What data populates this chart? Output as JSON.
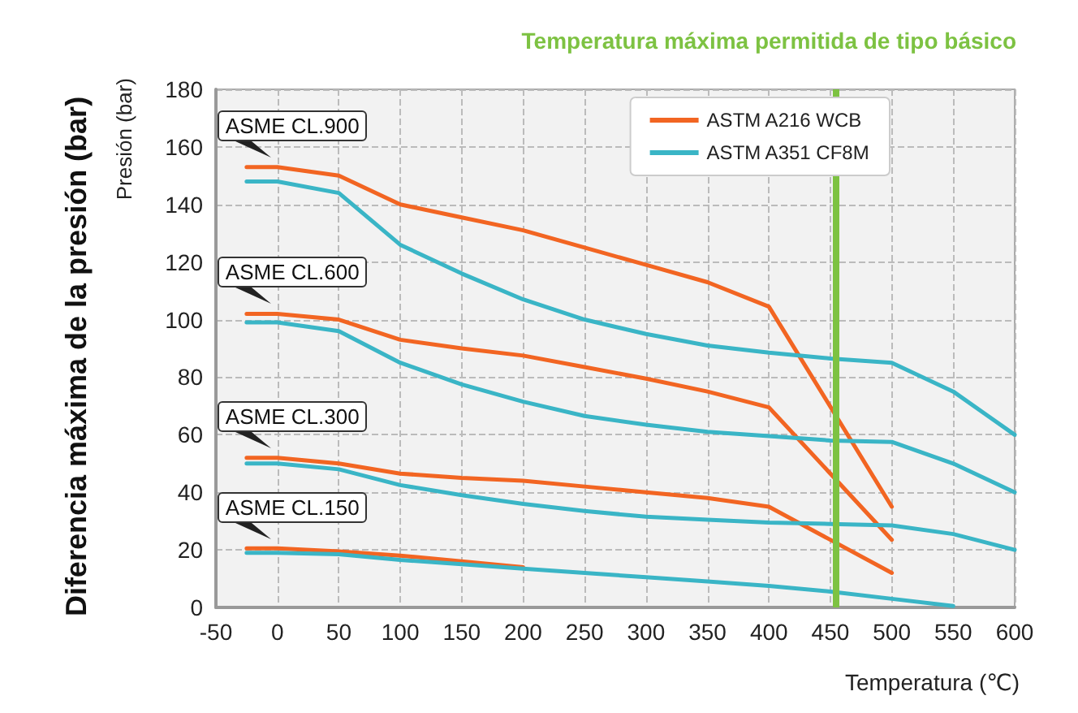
{
  "chart_data": {
    "type": "line",
    "title": null,
    "xlabel": "Temperatura (℃)",
    "ylabel": "Diferencia máxima de la presión (bar)",
    "xlim": [
      -50,
      600
    ],
    "xticks": [
      -50,
      0,
      50,
      100,
      150,
      200,
      250,
      300,
      350,
      400,
      450,
      500,
      550,
      600
    ],
    "ylim": [
      0,
      180
    ],
    "yticks": [
      0,
      20,
      40,
      60,
      80,
      100,
      120,
      140,
      160,
      180
    ],
    "grid": true,
    "legend": "top right",
    "marker": "none",
    "line_style": "solid",
    "series": [
      {
        "name": "ASTM A216 WCB",
        "color": "#f26522",
        "x": [
          -25,
          0,
          50,
          100,
          150,
          200,
          250,
          300,
          350,
          400,
          500
        ],
        "values": [
          153,
          153,
          150,
          140,
          135.5,
          131,
          125,
          119,
          113,
          104.5,
          35
        ]
      },
      {
        "name": "ASTM A351 CF8M",
        "color": "#3ab5c6",
        "x": [
          -25,
          0,
          50,
          100,
          150,
          200,
          250,
          300,
          350,
          400,
          450,
          500,
          550,
          600
        ],
        "values": [
          148,
          148,
          144,
          126,
          116,
          107,
          100,
          95,
          91,
          88.5,
          86.5,
          85,
          75,
          60
        ]
      },
      {
        "color": "#f26522",
        "x": [
          -25,
          0,
          50,
          100,
          150,
          200,
          250,
          300,
          350,
          400,
          500
        ],
        "values": [
          102,
          102,
          100,
          93,
          90,
          87.5,
          83.5,
          79.5,
          75,
          69.5,
          23.5
        ]
      },
      {
        "color": "#3ab5c6",
        "x": [
          -25,
          0,
          50,
          100,
          150,
          200,
          250,
          300,
          350,
          400,
          450,
          500,
          550,
          600
        ],
        "values": [
          99,
          99,
          96,
          85,
          77.5,
          71.5,
          66.5,
          63.5,
          61,
          59.5,
          58,
          57.5,
          50,
          40
        ]
      },
      {
        "color": "#f26522",
        "x": [
          -25,
          0,
          50,
          100,
          150,
          200,
          250,
          300,
          350,
          400,
          500
        ],
        "values": [
          52,
          52,
          50,
          46.5,
          45,
          44,
          42,
          40,
          38,
          35,
          12
        ]
      },
      {
        "color": "#3ab5c6",
        "x": [
          -25,
          0,
          50,
          100,
          150,
          200,
          250,
          300,
          350,
          400,
          450,
          500,
          550,
          600
        ],
        "values": [
          50,
          50,
          48,
          42.5,
          39,
          36,
          33.5,
          31.5,
          30.5,
          29.5,
          29,
          28.5,
          25.5,
          20
        ]
      },
      {
        "color": "#f26522",
        "x": [
          -25,
          0,
          50,
          100,
          150,
          200
        ],
        "values": [
          20.5,
          20.5,
          19.5,
          18,
          16,
          14
        ]
      },
      {
        "color": "#3ab5c6",
        "x": [
          -25,
          0,
          50,
          100,
          150,
          200,
          250,
          300,
          350,
          400,
          450,
          500,
          550
        ],
        "values": [
          19,
          19,
          18.5,
          16.5,
          15,
          13.5,
          12,
          10.5,
          9,
          7.5,
          5.5,
          3,
          0.5
        ]
      }
    ],
    "ref_lines": [
      {
        "axis": "x",
        "value": 455,
        "label": "Temperatura máxima permitida de tipo básico",
        "color": "#7dc242"
      }
    ],
    "annotations": [
      "Presión (bar)",
      "ASME CL.900",
      "ASME CL.600",
      "ASME CL.300",
      "ASME CL.150"
    ]
  }
}
